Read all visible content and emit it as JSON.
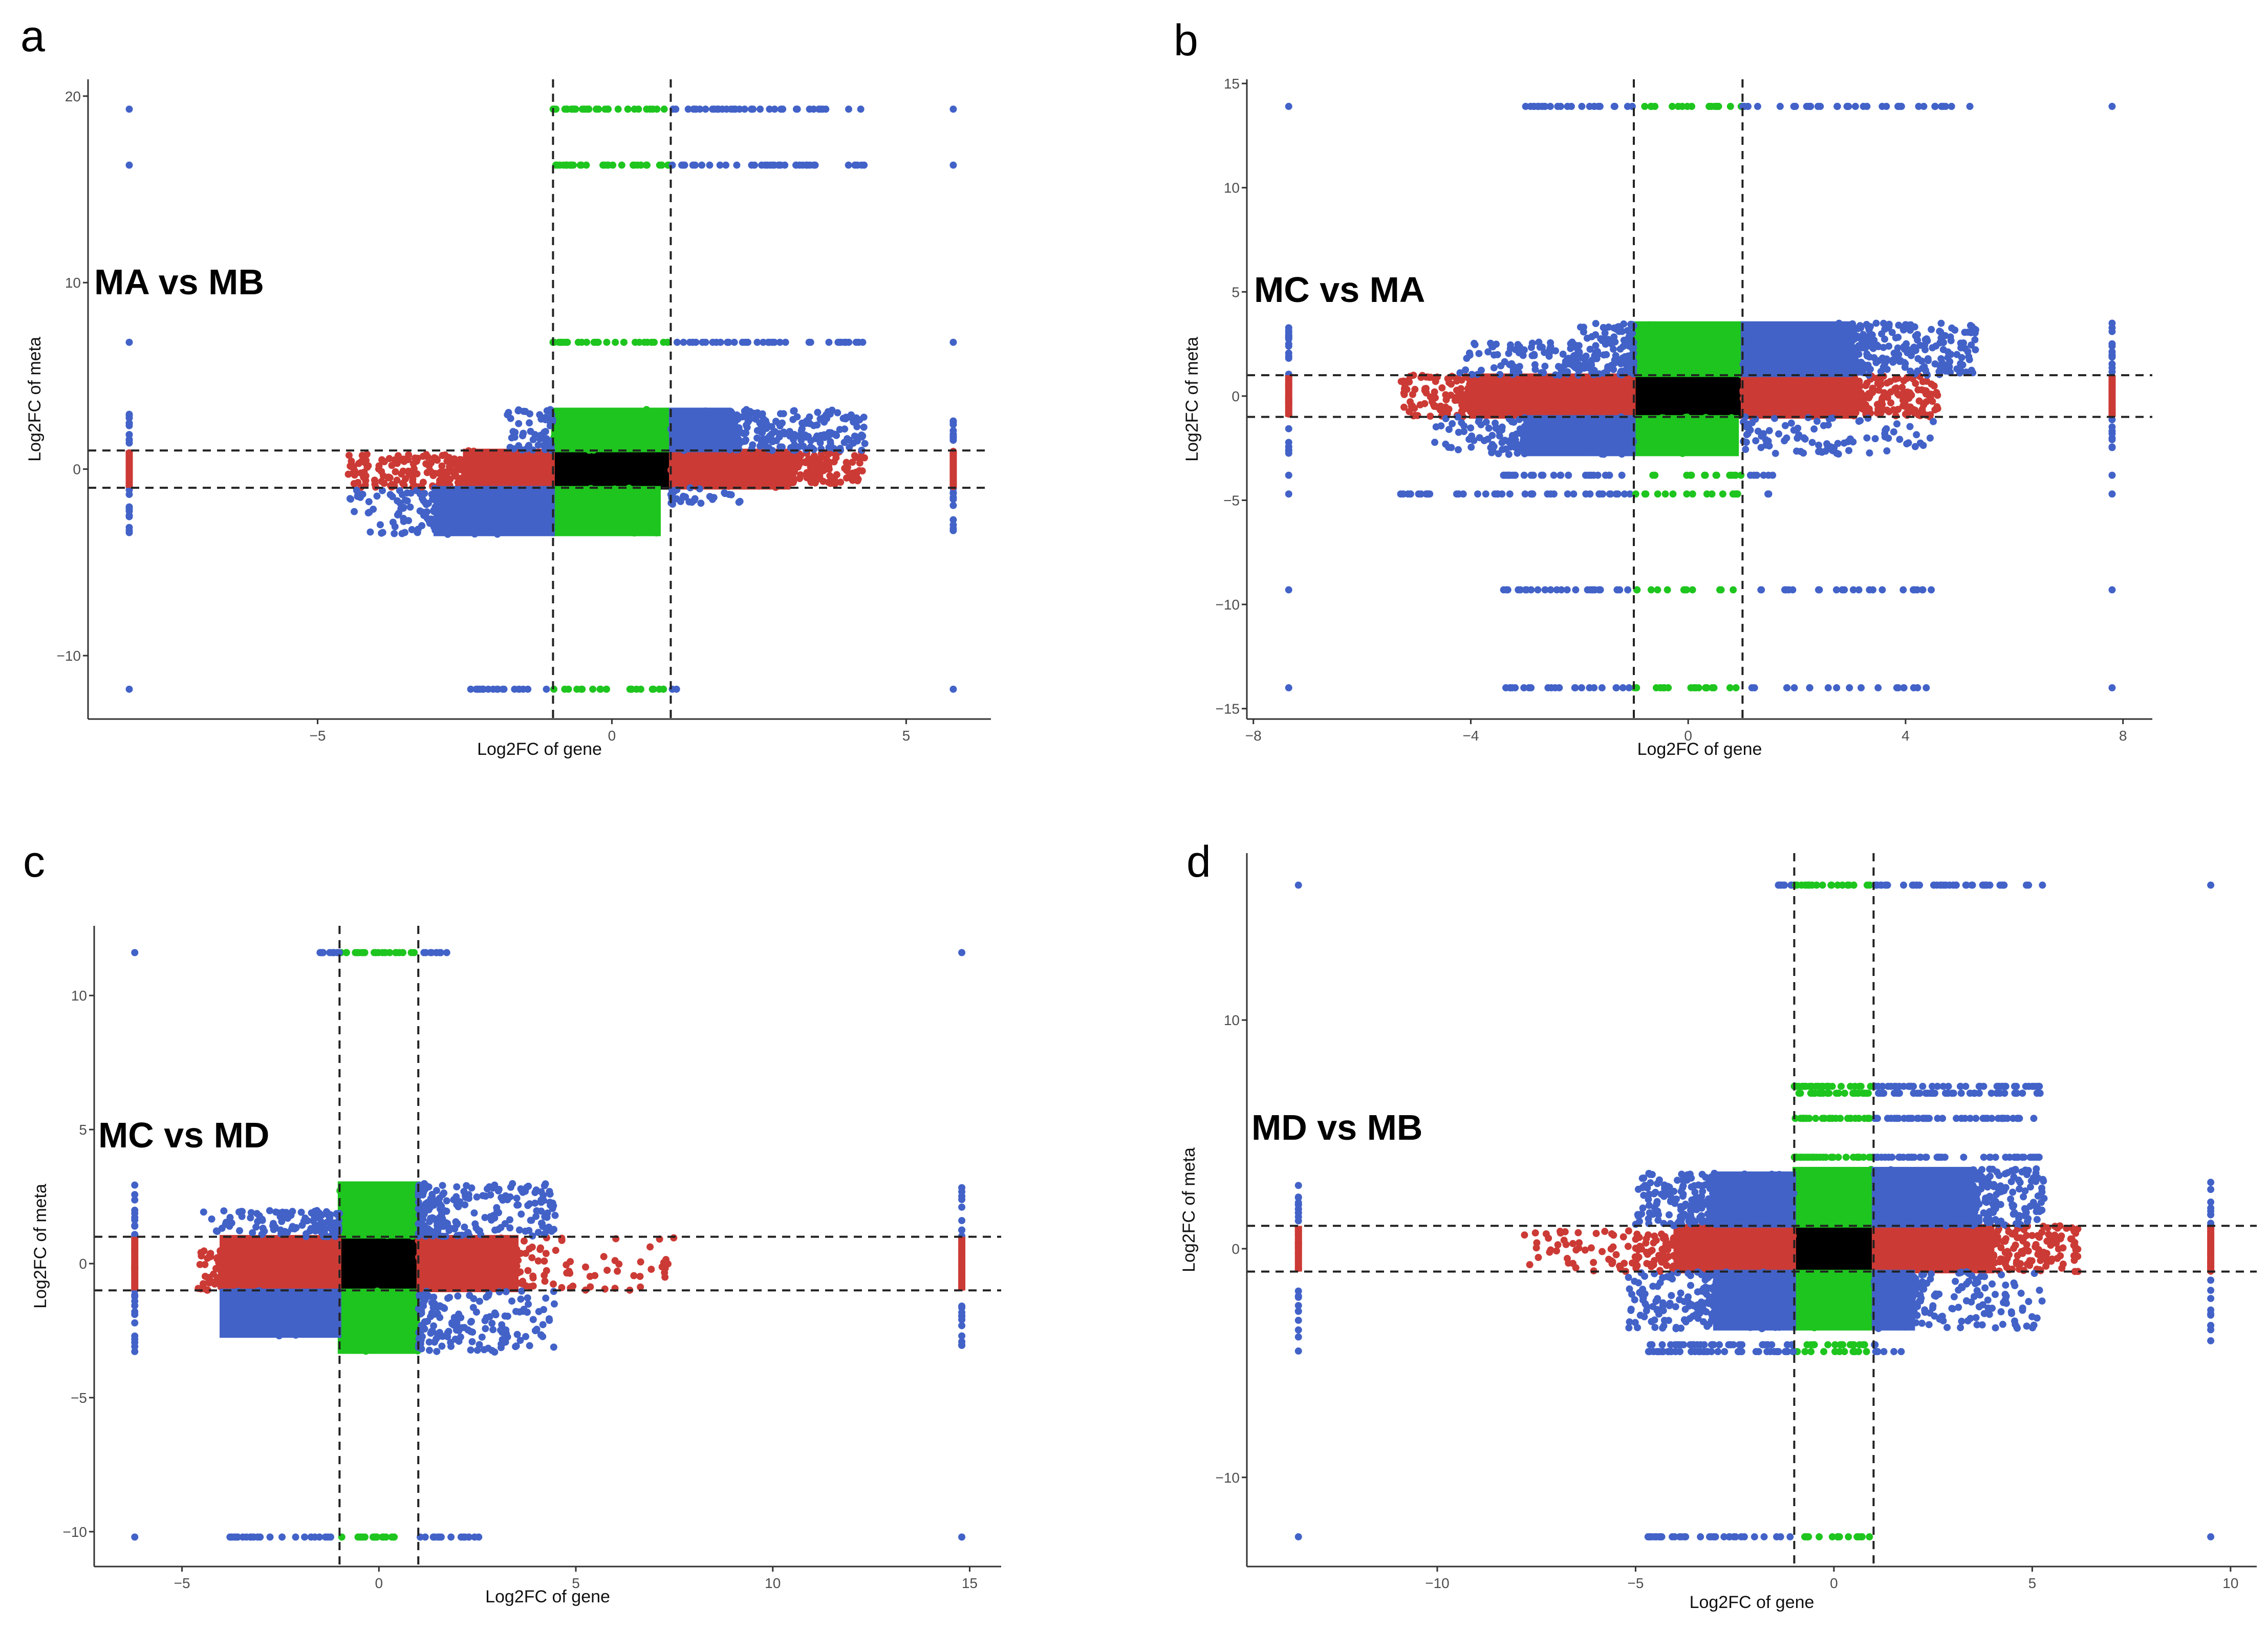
{
  "colors": {
    "black": "#000000",
    "red": "#cc3a35",
    "green": "#1ec51e",
    "blue": "#4262c8"
  },
  "chart_data": [
    {
      "type": "scatter",
      "panel_label": "a",
      "title": "MA vs MB",
      "xlabel": "Log2FC of gene",
      "ylabel": "Log2FC of meta",
      "xlim": [
        -8.9,
        6.44
      ],
      "ylim": [
        -13.4,
        20.9
      ],
      "xticks": [
        -5,
        0,
        5
      ],
      "yticks": [
        -10,
        0,
        10,
        20
      ],
      "thresholds": {
        "x": [
          -1,
          1
        ],
        "y": [
          -1,
          1
        ]
      },
      "color_rule": "black: |x|<1 & |y|<1; red: |y|<1 & |x|>=1; green: |x|<1 & |y|>=1; blue: otherwise",
      "regions": [
        {
          "x": [
            -1,
            1
          ],
          "y": [
            -1,
            1
          ],
          "style": "solid"
        },
        {
          "x": [
            -1,
            1
          ],
          "y": [
            1,
            3.2
          ],
          "style": "solid"
        },
        {
          "x": [
            -1,
            0.8
          ],
          "y": [
            -3.5,
            -1
          ],
          "style": "solid"
        },
        {
          "x": [
            -2.5,
            -1
          ],
          "y": [
            -1,
            1
          ],
          "style": "solid"
        },
        {
          "x": [
            -4.5,
            -2.5
          ],
          "y": [
            -1,
            0.8
          ],
          "style": "scatter",
          "n": 160
        },
        {
          "x": [
            1,
            3
          ],
          "y": [
            -1,
            1
          ],
          "style": "solid"
        },
        {
          "x": [
            3,
            4.3
          ],
          "y": [
            -0.8,
            1
          ],
          "style": "scatter",
          "n": 140
        },
        {
          "x": [
            1,
            2
          ],
          "y": [
            1,
            3.2
          ],
          "style": "solid"
        },
        {
          "x": [
            2,
            4.3
          ],
          "y": [
            1,
            3.2
          ],
          "style": "scatter",
          "n": 220
        },
        {
          "x": [
            -1.8,
            -1
          ],
          "y": [
            1,
            3.2
          ],
          "style": "scatter",
          "n": 60
        },
        {
          "x": [
            -3,
            -1
          ],
          "y": [
            -3.5,
            -1
          ],
          "style": "solid"
        },
        {
          "x": [
            -4.5,
            -3
          ],
          "y": [
            -3.5,
            -1
          ],
          "style": "scatter",
          "n": 80
        },
        {
          "x": [
            1,
            2.2
          ],
          "y": [
            -2,
            -1
          ],
          "style": "scatter",
          "n": 30
        }
      ],
      "rows": [
        {
          "y": 19.3,
          "x": [
            -1,
            4.3
          ],
          "n": 70
        },
        {
          "y": 16.3,
          "x": [
            -1,
            4.3
          ],
          "n": 70
        },
        {
          "y": 6.8,
          "x": [
            -1,
            4.3
          ],
          "n": 70
        },
        {
          "y": -11.8,
          "x": [
            -2.4,
            1.1
          ],
          "n": 45
        }
      ],
      "edge_columns": {
        "x": [
          -8.2,
          5.8
        ],
        "y": [
          -3.5,
          3.2
        ],
        "extra_y": [
          19.3,
          16.3,
          6.8,
          -11.8
        ]
      }
    },
    {
      "type": "scatter",
      "panel_label": "b",
      "title": "MC vs MA",
      "xlabel": "Log2FC of gene",
      "ylabel": "Log2FC of meta",
      "xlim": [
        -8.12,
        8.54
      ],
      "ylim": [
        -15.5,
        15.2
      ],
      "xticks": [
        -8,
        -4,
        0,
        4,
        8
      ],
      "yticks": [
        -15,
        -10,
        -5,
        0,
        5,
        10,
        15
      ],
      "thresholds": {
        "x": [
          -1,
          1
        ],
        "y": [
          -1,
          1
        ]
      },
      "color_rule": "black: |x|<1 & |y|<1; red: |y|<1 & |x|>=1; green: |x|<1 & |y|>=1; blue: otherwise",
      "regions": [
        {
          "x": [
            -1,
            1
          ],
          "y": [
            -1,
            1
          ],
          "style": "solid"
        },
        {
          "x": [
            -1,
            1
          ],
          "y": [
            1,
            3.5
          ],
          "style": "solid"
        },
        {
          "x": [
            -1,
            0.9
          ],
          "y": [
            -2.8,
            -1
          ],
          "style": "solid"
        },
        {
          "x": [
            -4,
            -1
          ],
          "y": [
            -1,
            1
          ],
          "style": "solid"
        },
        {
          "x": [
            -5.3,
            -4
          ],
          "y": [
            -1,
            1
          ],
          "style": "scatter",
          "n": 100
        },
        {
          "x": [
            1,
            3
          ],
          "y": [
            -1,
            1
          ],
          "style": "solid"
        },
        {
          "x": [
            3,
            4.6
          ],
          "y": [
            -1,
            1
          ],
          "style": "scatter",
          "n": 160
        },
        {
          "x": [
            1,
            3
          ],
          "y": [
            1,
            3.5
          ],
          "style": "solid"
        },
        {
          "x": [
            3,
            5.3
          ],
          "y": [
            1,
            3.5
          ],
          "style": "scatter",
          "n": 220
        },
        {
          "x": [
            -2,
            -1
          ],
          "y": [
            1,
            3.5
          ],
          "style": "scatter",
          "n": 120
        },
        {
          "x": [
            -4.2,
            -2
          ],
          "y": [
            1,
            2.6
          ],
          "style": "scatter",
          "n": 100
        },
        {
          "x": [
            -3,
            -1
          ],
          "y": [
            -2.8,
            -1
          ],
          "style": "solid"
        },
        {
          "x": [
            -4.7,
            -3
          ],
          "y": [
            -2.8,
            -1
          ],
          "style": "scatter",
          "n": 80
        },
        {
          "x": [
            1,
            4.6
          ],
          "y": [
            -2.8,
            -1
          ],
          "style": "scatter",
          "n": 90
        }
      ],
      "rows": [
        {
          "y": 13.9,
          "x": [
            -3,
            5.3
          ],
          "n": 80
        },
        {
          "y": -3.8,
          "x": [
            -3.4,
            1.8
          ],
          "n": 50
        },
        {
          "y": -4.7,
          "x": [
            -5.3,
            1.5
          ],
          "n": 60
        },
        {
          "y": -9.3,
          "x": [
            -3.4,
            4.6
          ],
          "n": 60
        },
        {
          "y": -14,
          "x": [
            -3.4,
            4.6
          ],
          "n": 60
        }
      ],
      "edge_columns": {
        "x": [
          -7.35,
          7.8
        ],
        "y": [
          -2.8,
          3.5
        ],
        "extra_y": [
          13.9,
          -3.8,
          -4.7,
          -9.3,
          -14
        ]
      }
    },
    {
      "type": "scatter",
      "panel_label": "c",
      "title": "MC vs MD",
      "xlabel": "Log2FC of gene",
      "ylabel": "Log2FC of meta",
      "xlim": [
        -7.23,
        15.8
      ],
      "ylim": [
        -11.3,
        12.6
      ],
      "xticks": [
        -5,
        0,
        5,
        10,
        15
      ],
      "yticks": [
        -10,
        -5,
        0,
        5,
        10
      ],
      "thresholds": {
        "x": [
          -1,
          1
        ],
        "y": [
          -1,
          1
        ]
      },
      "color_rule": "black: |x|<1 & |y|<1; red: |y|<1 & |x|>=1; green: |x|<1 & |y|>=1; blue: otherwise",
      "regions": [
        {
          "x": [
            -1,
            1
          ],
          "y": [
            -1,
            1
          ],
          "style": "solid"
        },
        {
          "x": [
            -1,
            1
          ],
          "y": [
            1,
            3
          ],
          "style": "solid"
        },
        {
          "x": [
            -1,
            1
          ],
          "y": [
            -3.3,
            -1
          ],
          "style": "solid"
        },
        {
          "x": [
            -4,
            -1
          ],
          "y": [
            -1,
            1
          ],
          "style": "solid"
        },
        {
          "x": [
            -4.6,
            -4
          ],
          "y": [
            -1,
            0.5
          ],
          "style": "scatter",
          "n": 40
        },
        {
          "x": [
            1,
            3.5
          ],
          "y": [
            -1,
            1
          ],
          "style": "solid"
        },
        {
          "x": [
            3.5,
            7.5
          ],
          "y": [
            -1,
            1
          ],
          "style": "scatter",
          "n": 70
        },
        {
          "x": [
            -4,
            -1
          ],
          "y": [
            -2.7,
            -1
          ],
          "style": "solid"
        },
        {
          "x": [
            -2.5,
            -1
          ],
          "y": [
            1,
            2
          ],
          "style": "scatter",
          "n": 80
        },
        {
          "x": [
            -4.5,
            -2.5
          ],
          "y": [
            1,
            2
          ],
          "style": "scatter",
          "n": 40
        },
        {
          "x": [
            1,
            4.5
          ],
          "y": [
            1,
            3
          ],
          "style": "scatter",
          "n": 220
        },
        {
          "x": [
            1,
            4.5
          ],
          "y": [
            -3.3,
            -1
          ],
          "style": "scatter",
          "n": 160
        }
      ],
      "rows": [
        {
          "y": 11.6,
          "x": [
            -1.5,
            2
          ],
          "n": 45
        },
        {
          "y": -10.2,
          "x": [
            -3.8,
            2.8
          ],
          "n": 55
        }
      ],
      "edge_columns": {
        "x": [
          -6.2,
          14.8
        ],
        "y": [
          -3.3,
          3
        ],
        "extra_y": [
          11.6,
          -10.2
        ]
      }
    },
    {
      "type": "scatter",
      "panel_label": "d",
      "title": "MD vs MB",
      "xlabel": "Log2FC of gene",
      "ylabel": "Log2FC of meta",
      "xlim": [
        -14.8,
        10.66
      ],
      "ylim": [
        -13.9,
        17.3
      ],
      "xticks": [
        -10,
        -5,
        0,
        5,
        10
      ],
      "yticks": [
        -10,
        0,
        10
      ],
      "thresholds": {
        "x": [
          -1,
          1
        ],
        "y": [
          -1,
          1
        ]
      },
      "color_rule": "black: |x|<1 & |y|<1; red: |y|<1 & |x|>=1; green: |x|<1 & |y|>=1; blue: otherwise",
      "regions": [
        {
          "x": [
            -1,
            1
          ],
          "y": [
            -1,
            1
          ],
          "style": "solid"
        },
        {
          "x": [
            -1,
            1
          ],
          "y": [
            1,
            3.5
          ],
          "style": "solid"
        },
        {
          "x": [
            -1,
            1
          ],
          "y": [
            -3.5,
            -1
          ],
          "style": "solid"
        },
        {
          "x": [
            -4,
            -1
          ],
          "y": [
            -1,
            1
          ],
          "style": "solid"
        },
        {
          "x": [
            -7.8,
            -4
          ],
          "y": [
            -1,
            0.8
          ],
          "style": "scatter",
          "n": 110
        },
        {
          "x": [
            1,
            4
          ],
          "y": [
            -1,
            1
          ],
          "style": "solid"
        },
        {
          "x": [
            4,
            6.2
          ],
          "y": [
            -1,
            1
          ],
          "style": "scatter",
          "n": 130
        },
        {
          "x": [
            -3,
            -1
          ],
          "y": [
            1,
            3.3
          ],
          "style": "solid"
        },
        {
          "x": [
            -5,
            -3
          ],
          "y": [
            1,
            3.3
          ],
          "style": "scatter",
          "n": 150
        },
        {
          "x": [
            1,
            3.5
          ],
          "y": [
            1,
            3.5
          ],
          "style": "solid"
        },
        {
          "x": [
            3.5,
            5.3
          ],
          "y": [
            1,
            3.5
          ],
          "style": "scatter",
          "n": 160
        },
        {
          "x": [
            -3,
            -1
          ],
          "y": [
            -3.5,
            -1
          ],
          "style": "solid"
        },
        {
          "x": [
            -5.2,
            -3
          ],
          "y": [
            -3.5,
            -1
          ],
          "style": "scatter",
          "n": 130
        },
        {
          "x": [
            1,
            2
          ],
          "y": [
            -3.5,
            -1
          ],
          "style": "solid"
        },
        {
          "x": [
            2,
            5.3
          ],
          "y": [
            -3.5,
            -1
          ],
          "style": "scatter",
          "n": 120
        }
      ],
      "rows": [
        {
          "y": 15.9,
          "x": [
            -1.4,
            5.3
          ],
          "n": 80
        },
        {
          "y": 7.1,
          "x": [
            -1,
            5.3
          ],
          "n": 70
        },
        {
          "y": 6.8,
          "x": [
            -1,
            5.3
          ],
          "n": 70
        },
        {
          "y": 5.7,
          "x": [
            -1,
            5.3
          ],
          "n": 70
        },
        {
          "y": 4.0,
          "x": [
            -1,
            5.3
          ],
          "n": 80
        },
        {
          "y": -4.2,
          "x": [
            -4.7,
            1.2
          ],
          "n": 60
        },
        {
          "y": -4.5,
          "x": [
            -4.7,
            1.7
          ],
          "n": 60
        },
        {
          "y": -12.6,
          "x": [
            -4.7,
            1.2
          ],
          "n": 55
        }
      ],
      "edge_columns": {
        "x": [
          -13.5,
          9.5
        ],
        "y": [
          -4.5,
          3.3
        ],
        "extra_y": [
          15.9,
          -12.6
        ]
      }
    }
  ]
}
